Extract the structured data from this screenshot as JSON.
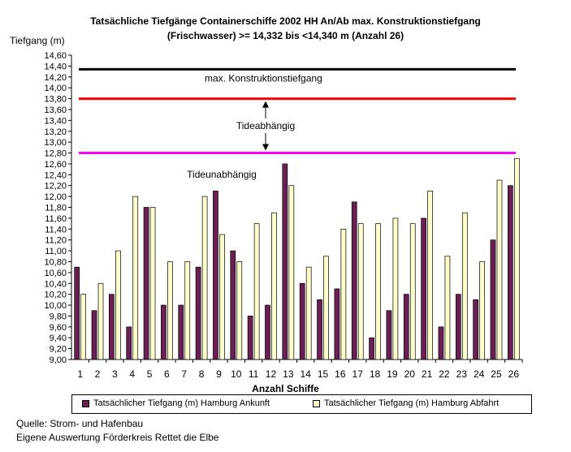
{
  "title_line1": "Tatsächliche Tiefgänge Containerschiffe 2002 HH An/Ab max. Konstruktionstiefgang",
  "title_line2": "(Frischwasser) >= 14,332 bis <14,340 m (Anzahl 26)",
  "source_line1": "Quelle: Strom- und Hafenbau",
  "source_line2": "Eigene Auswertung Förderkreis Rettet die Elbe",
  "colors": {
    "arrival": "#6b1f52",
    "departure": "#ffffcc",
    "max_line": "#000000",
    "tide_line": "#ff0000",
    "tideless_line": "#ff00ff"
  },
  "chart_data": {
    "type": "bar",
    "title": "Tatsächliche Tiefgänge Containerschiffe 2002 HH An/Ab max. Konstruktionstiefgang (Frischwasser) >= 14,332 bis <14,340 m (Anzahl 26)",
    "xlabel": "Anzahl Schiffe",
    "ylabel": "Tiefgang (m)",
    "ylim": [
      9.0,
      14.6
    ],
    "yticks": [
      "9,00",
      "9,20",
      "9,40",
      "9,60",
      "9,80",
      "10,00",
      "10,20",
      "10,40",
      "10,60",
      "10,80",
      "11,00",
      "11,20",
      "11,40",
      "11,60",
      "11,80",
      "12,00",
      "12,20",
      "12,40",
      "12,60",
      "12,80",
      "13,00",
      "13,20",
      "13,40",
      "13,60",
      "13,80",
      "14,00",
      "14,20",
      "14,40",
      "14,60"
    ],
    "categories": [
      "1",
      "2",
      "3",
      "4",
      "5",
      "6",
      "7",
      "8",
      "9",
      "10",
      "11",
      "12",
      "13",
      "14",
      "15",
      "16",
      "17",
      "18",
      "19",
      "20",
      "21",
      "22",
      "23",
      "24",
      "25",
      "26"
    ],
    "series": [
      {
        "name": "Tatsächlicher Tiefgang (m) Hamburg Ankunft",
        "values": [
          10.7,
          9.9,
          10.2,
          9.6,
          11.8,
          10.0,
          10.0,
          10.7,
          12.1,
          11.0,
          9.8,
          10.0,
          12.6,
          10.4,
          10.1,
          10.3,
          11.9,
          9.4,
          9.9,
          10.2,
          11.6,
          9.6,
          10.2,
          10.1,
          11.2,
          12.2
        ]
      },
      {
        "name": "Tatsächlicher Tiefgang (m) Hamburg Abfahrt",
        "values": [
          10.2,
          10.4,
          11.0,
          12.0,
          11.8,
          10.8,
          10.8,
          12.0,
          11.3,
          10.8,
          11.5,
          11.7,
          12.2,
          10.7,
          10.9,
          11.4,
          11.5,
          11.5,
          11.6,
          11.5,
          12.1,
          10.9,
          11.7,
          10.8,
          12.3,
          12.7
        ]
      }
    ],
    "reference_lines": [
      {
        "label": "max. Konstruktionstiefgang",
        "value": 14.34
      },
      {
        "label": "",
        "value": 13.8
      },
      {
        "label": "",
        "value": 12.8
      }
    ],
    "annotations": [
      "Tideabhängig",
      "Tideunabhängig"
    ],
    "grid": false,
    "legend_position": "bottom"
  }
}
